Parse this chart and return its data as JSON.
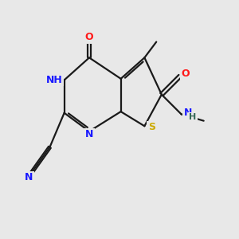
{
  "bg_color": "#e8e8e8",
  "bond_color": "#1a1a1a",
  "bond_width": 1.6,
  "colors": {
    "C": "#000000",
    "N": "#1a1aff",
    "O": "#ff1a1a",
    "S": "#ccaa00",
    "H": "#336655"
  },
  "font_size": 9,
  "font_size_small": 8
}
